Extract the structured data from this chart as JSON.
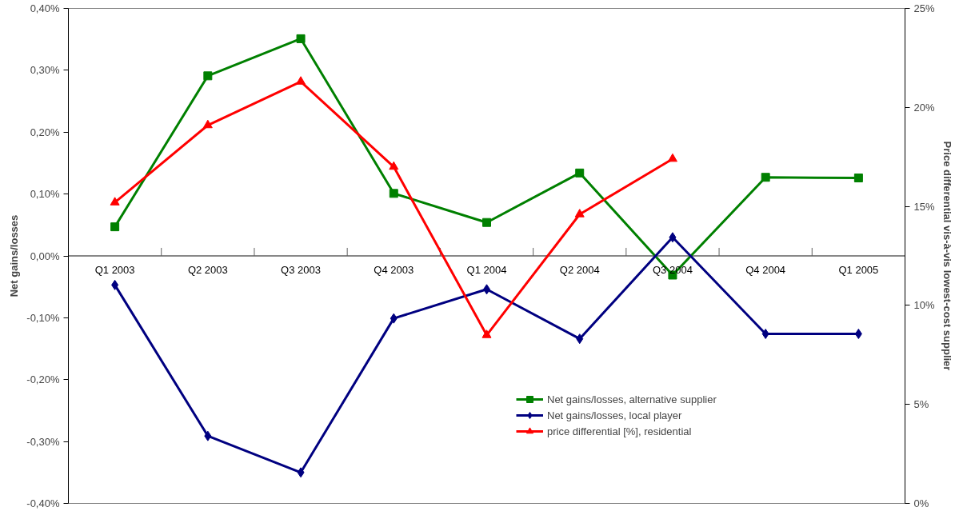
{
  "chart_data": {
    "type": "line",
    "ylabel": "Net gains/losses",
    "y2label": "Price differential vis-à-vis lowest-cost supplier",
    "categories": [
      "Q1 2003",
      "Q2 2003",
      "Q3 2003",
      "Q4 2003",
      "Q1 2004",
      "Q2 2004",
      "Q3 2004",
      "Q4 2004",
      "Q1 2005"
    ],
    "series": [
      {
        "name": "Net gains/losses, alternative supplier",
        "color": "#008000",
        "marker": "square",
        "values": [
          0.047,
          0.291,
          0.351,
          0.101,
          0.054,
          0.134,
          -0.031,
          0.127,
          0.126
        ]
      },
      {
        "name": "Net gains/losses, local player",
        "color": "#000080",
        "marker": "diamond",
        "values": [
          -0.047,
          -0.291,
          -0.35,
          -0.101,
          -0.054,
          -0.134,
          0.03,
          -0.126,
          -0.126
        ]
      },
      {
        "name": "price differential [%], residential",
        "color": "#ff0000",
        "marker": "triangle",
        "axis": "y2",
        "values": [
          15.2,
          19.1,
          21.3,
          17.0,
          8.5,
          14.6,
          17.4,
          null,
          null
        ]
      }
    ],
    "ylim": [
      -0.4,
      0.4
    ],
    "yticks": [
      {
        "value": -0.4,
        "label": "-0,40%"
      },
      {
        "value": -0.3,
        "label": "-0,30%"
      },
      {
        "value": -0.2,
        "label": "-0,20%"
      },
      {
        "value": -0.1,
        "label": "-0,10%"
      },
      {
        "value": 0,
        "label": "0,00%"
      },
      {
        "value": 0.1,
        "label": "0,10%"
      },
      {
        "value": 0.2,
        "label": "0,20%"
      },
      {
        "value": 0.3,
        "label": "0,30%"
      },
      {
        "value": 0.4,
        "label": "0,40%"
      }
    ],
    "y2lim": [
      0,
      25
    ],
    "y2ticks": [
      {
        "value": 0,
        "label": "0%"
      },
      {
        "value": 5,
        "label": "5%"
      },
      {
        "value": 10,
        "label": "10%"
      },
      {
        "value": 15,
        "label": "15%"
      },
      {
        "value": 20,
        "label": "20%"
      },
      {
        "value": 25,
        "label": "25%"
      }
    ],
    "grid": false,
    "legend": "bottom",
    "line_style": "solid"
  }
}
